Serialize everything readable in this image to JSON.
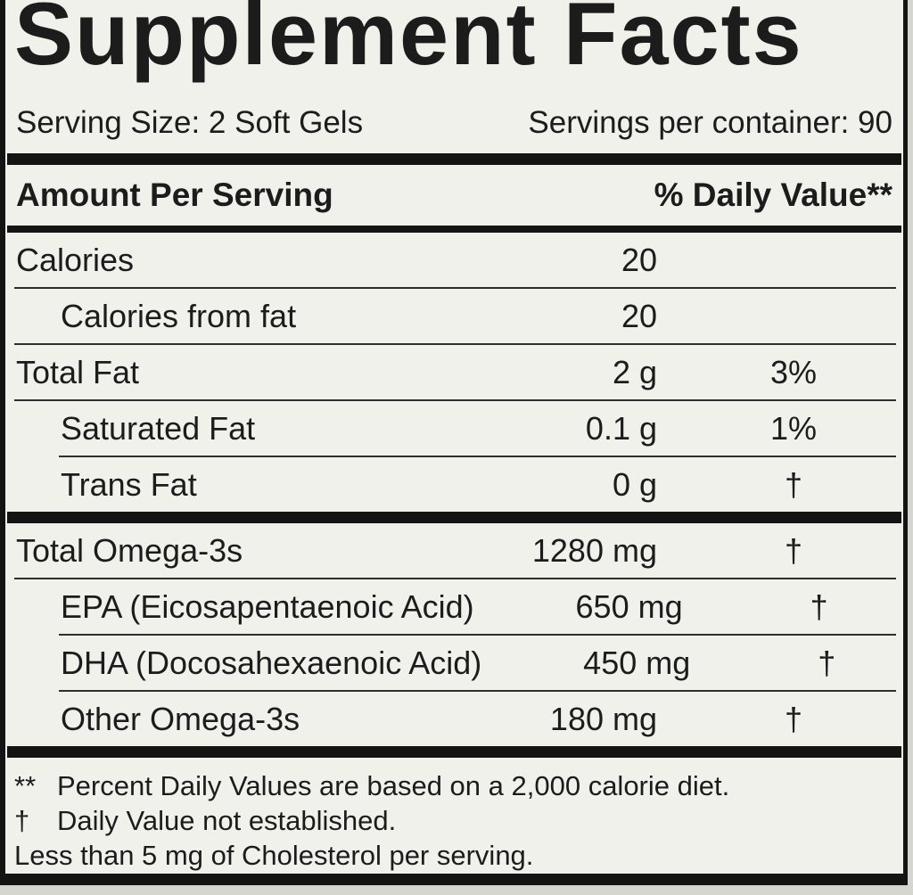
{
  "label": {
    "title": "Supplement Facts",
    "serving_size": "Serving Size: 2 Soft Gels",
    "servings_per_container": "Servings per container: 90",
    "columns": {
      "amount_header": "Amount Per Serving",
      "dv_header": "% Daily Value**"
    },
    "rows": [
      {
        "name": "Calories",
        "amount": "20",
        "dv": "",
        "indent": false,
        "divider": "none",
        "bar_after": false
      },
      {
        "name": "Calories from fat",
        "amount": "20",
        "dv": "",
        "indent": true,
        "divider": "full",
        "bar_after": false
      },
      {
        "name": "Total Fat",
        "amount": "2 g",
        "dv": "3%",
        "indent": false,
        "divider": "full",
        "bar_after": false
      },
      {
        "name": "Saturated Fat",
        "amount": "0.1 g",
        "dv": "1%",
        "indent": true,
        "divider": "full",
        "bar_after": false
      },
      {
        "name": "Trans Fat",
        "amount": "0 g",
        "dv": "†",
        "indent": true,
        "divider": "indent",
        "bar_after": true
      },
      {
        "name": "Total Omega-3s",
        "amount": "1280 mg",
        "dv": "†",
        "indent": false,
        "divider": "none",
        "bar_after": false
      },
      {
        "name": "EPA (Eicosapentaenoic Acid)",
        "amount": "650 mg",
        "dv": "†",
        "indent": true,
        "divider": "full",
        "bar_after": false
      },
      {
        "name": "DHA (Docosahexaenoic Acid)",
        "amount": "450 mg",
        "dv": "†",
        "indent": true,
        "divider": "indent",
        "bar_after": false
      },
      {
        "name": "Other Omega-3s",
        "amount": "180 mg",
        "dv": "†",
        "indent": true,
        "divider": "indent",
        "bar_after": true
      }
    ],
    "footnotes": [
      {
        "marker": "**",
        "text": "Percent Daily Values are based on a 2,000 calorie diet."
      },
      {
        "marker": "†",
        "text": "Daily Value not established."
      },
      {
        "marker": "",
        "text": "Less than 5 mg of Cholesterol per serving."
      }
    ],
    "colors": {
      "ink": "#1c1c1c",
      "label_background": "#f0f1eb",
      "outside_background": "#d6d6d1",
      "rule": "#2e2e2e",
      "bar": "#141414"
    }
  }
}
